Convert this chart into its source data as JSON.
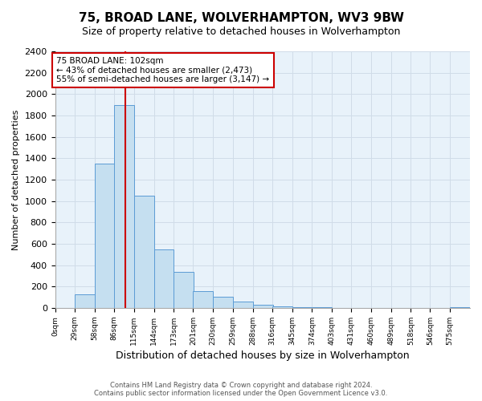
{
  "title": "75, BROAD LANE, WOLVERHAMPTON, WV3 9BW",
  "subtitle": "Size of property relative to detached houses in Wolverhampton",
  "xlabel": "Distribution of detached houses by size in Wolverhampton",
  "ylabel": "Number of detached properties",
  "footer1": "Contains HM Land Registry data © Crown copyright and database right 2024.",
  "footer2": "Contains public sector information licensed under the Open Government Licence v3.0.",
  "bin_labels": [
    "0sqm",
    "29sqm",
    "58sqm",
    "86sqm",
    "115sqm",
    "144sqm",
    "173sqm",
    "201sqm",
    "230sqm",
    "259sqm",
    "288sqm",
    "316sqm",
    "345sqm",
    "374sqm",
    "403sqm",
    "431sqm",
    "460sqm",
    "489sqm",
    "518sqm",
    "546sqm",
    "575sqm"
  ],
  "bin_edges": [
    0,
    29,
    58,
    86,
    115,
    144,
    173,
    201,
    230,
    259,
    288,
    316,
    345,
    374,
    403,
    431,
    460,
    489,
    518,
    546,
    575
  ],
  "bar_heights": [
    0,
    125,
    1350,
    1900,
    1050,
    550,
    335,
    160,
    105,
    60,
    30,
    15,
    8,
    5,
    3,
    2,
    1,
    0,
    0,
    0,
    5
  ],
  "bar_color": "#c5dff0",
  "bar_edge_color": "#5b9bd5",
  "vline_x": 102,
  "vline_color": "#cc0000",
  "annotation_title": "75 BROAD LANE: 102sqm",
  "annotation_line1": "← 43% of detached houses are smaller (2,473)",
  "annotation_line2": "55% of semi-detached houses are larger (3,147) →",
  "annotation_box_color": "#ffffff",
  "annotation_box_edge": "#cc0000",
  "ylim": [
    0,
    2400
  ],
  "yticks": [
    0,
    200,
    400,
    600,
    800,
    1000,
    1200,
    1400,
    1600,
    1800,
    2000,
    2200,
    2400
  ],
  "grid_color": "#d0dce8",
  "bg_color": "#ffffff"
}
